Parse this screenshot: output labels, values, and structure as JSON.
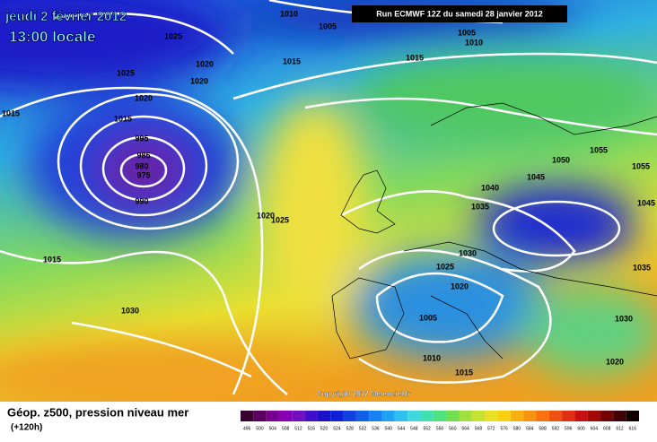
{
  "header": {
    "date": "jeudi 2 février 2012",
    "time": "13:00 locale"
  },
  "run": "Run ECMWF 12Z du samedi 28 janvier 2012",
  "map_labels": [
    "1010",
    "1005",
    "1025",
    "1005",
    "1010",
    "1025",
    "1020",
    "1020",
    "1015",
    "1015",
    "1020",
    "1015",
    "1015",
    "995",
    "985",
    "980",
    "975",
    "990",
    "1020",
    "1025",
    "1015",
    "1030",
    "1055",
    "1050",
    "1055",
    "1045",
    "1040",
    "1035",
    "1045",
    "1030",
    "1025",
    "1020",
    "1035",
    "1005",
    "1030",
    "1010",
    "1015",
    "1020"
  ],
  "copyright": "Copyright 2012 Meteociel.fr",
  "footer": {
    "title": "Géop. z500, pression niveau mer",
    "lead": "(+120h)"
  },
  "colorbar": [
    496,
    500,
    504,
    508,
    512,
    516,
    520,
    524,
    528,
    532,
    536,
    540,
    544,
    548,
    552,
    556,
    560,
    564,
    568,
    572,
    576,
    580,
    584,
    588,
    592,
    596,
    600,
    604,
    608,
    612,
    616
  ]
}
